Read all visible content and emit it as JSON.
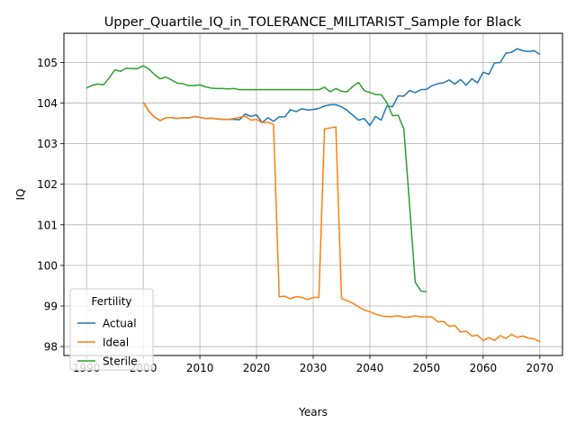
{
  "chart_data": {
    "type": "line",
    "title": "Upper_Quartile_IQ_in_TOLERANCE_MILITARIST_Sample for Black",
    "xlabel": "Years",
    "ylabel": "IQ",
    "xlim": [
      1986,
      2074
    ],
    "ylim": [
      97.78,
      105.72
    ],
    "x_ticks": [
      1990,
      2000,
      2010,
      2020,
      2030,
      2040,
      2050,
      2060,
      2070
    ],
    "y_ticks": [
      98,
      99,
      100,
      101,
      102,
      103,
      104,
      105
    ],
    "grid": true,
    "legend_title": "Fertility",
    "legend_position": "lower left",
    "series": [
      {
        "name": "Actual",
        "color": "#1f77b4",
        "x": [
          2000,
          2001,
          2002,
          2003,
          2004,
          2005,
          2006,
          2007,
          2008,
          2009,
          2010,
          2011,
          2012,
          2013,
          2014,
          2015,
          2016,
          2017,
          2018,
          2019,
          2020,
          2021,
          2022,
          2023,
          2024,
          2025,
          2026,
          2027,
          2028,
          2029,
          2030,
          2031,
          2032,
          2033,
          2034,
          2035,
          2036,
          2037,
          2038,
          2039,
          2040,
          2041,
          2042,
          2043,
          2044,
          2045,
          2046,
          2047,
          2048,
          2049,
          2050,
          2051,
          2052,
          2053,
          2054,
          2055,
          2056,
          2057,
          2058,
          2059,
          2060,
          2061,
          2062,
          2063,
          2064,
          2065,
          2066,
          2067,
          2068,
          2069,
          2070
        ],
        "values": [
          104.02,
          103.8,
          103.65,
          103.57,
          103.64,
          103.64,
          103.62,
          103.64,
          103.63,
          103.67,
          103.65,
          103.62,
          103.63,
          103.61,
          103.6,
          103.6,
          103.6,
          103.59,
          103.73,
          103.67,
          103.71,
          103.52,
          103.64,
          103.55,
          103.66,
          103.66,
          103.84,
          103.79,
          103.86,
          103.83,
          103.84,
          103.87,
          103.93,
          103.96,
          103.96,
          103.91,
          103.82,
          103.7,
          103.58,
          103.62,
          103.45,
          103.67,
          103.58,
          103.93,
          103.91,
          104.18,
          104.17,
          104.31,
          104.26,
          104.33,
          104.34,
          104.43,
          104.48,
          104.5,
          104.57,
          104.47,
          104.58,
          104.44,
          104.6,
          104.5,
          104.76,
          104.71,
          104.99,
          105.0,
          105.23,
          105.25,
          105.34,
          105.29,
          105.27,
          105.29,
          105.2
        ]
      },
      {
        "name": "Ideal",
        "color": "#ff7f0e",
        "x": [
          2000,
          2001,
          2002,
          2003,
          2004,
          2005,
          2006,
          2007,
          2008,
          2009,
          2010,
          2011,
          2012,
          2013,
          2014,
          2015,
          2016,
          2017,
          2018,
          2019,
          2020,
          2021,
          2022,
          2023,
          2024,
          2025,
          2026,
          2027,
          2028,
          2029,
          2030,
          2031,
          2032,
          2033,
          2034,
          2035,
          2036,
          2037,
          2038,
          2039,
          2040,
          2041,
          2042,
          2043,
          2044,
          2045,
          2046,
          2047,
          2048,
          2049,
          2050,
          2051,
          2052,
          2053,
          2054,
          2055,
          2056,
          2057,
          2058,
          2059,
          2060,
          2061,
          2062,
          2063,
          2064,
          2065,
          2066,
          2067,
          2068,
          2069,
          2070
        ],
        "values": [
          104.02,
          103.8,
          103.65,
          103.57,
          103.64,
          103.64,
          103.62,
          103.64,
          103.63,
          103.67,
          103.65,
          103.62,
          103.63,
          103.61,
          103.6,
          103.6,
          103.62,
          103.65,
          103.68,
          103.58,
          103.6,
          103.52,
          103.53,
          103.47,
          99.23,
          99.24,
          99.18,
          99.23,
          99.21,
          99.16,
          99.21,
          99.21,
          103.36,
          103.39,
          103.41,
          99.19,
          99.13,
          99.07,
          98.98,
          98.9,
          98.86,
          98.8,
          98.76,
          98.74,
          98.74,
          98.76,
          98.72,
          98.73,
          98.76,
          98.73,
          98.73,
          98.73,
          98.61,
          98.62,
          98.5,
          98.52,
          98.36,
          98.38,
          98.26,
          98.28,
          98.15,
          98.22,
          98.15,
          98.27,
          98.2,
          98.3,
          98.23,
          98.26,
          98.21,
          98.19,
          98.12
        ]
      },
      {
        "name": "Sterile",
        "color": "#2ca02c",
        "x": [
          1990,
          1991,
          1992,
          1993,
          1994,
          1995,
          1996,
          1997,
          1998,
          1999,
          2000,
          2001,
          2002,
          2003,
          2004,
          2005,
          2006,
          2007,
          2008,
          2009,
          2010,
          2011,
          2012,
          2013,
          2014,
          2015,
          2016,
          2017,
          2018,
          2019,
          2020,
          2021,
          2022,
          2023,
          2024,
          2025,
          2026,
          2027,
          2028,
          2029,
          2030,
          2031,
          2032,
          2033,
          2034,
          2035,
          2036,
          2037,
          2038,
          2039,
          2040,
          2041,
          2042,
          2043,
          2044,
          2045,
          2046,
          2047,
          2048,
          2049,
          2050
        ],
        "values": [
          104.37,
          104.44,
          104.47,
          104.45,
          104.62,
          104.82,
          104.78,
          104.86,
          104.85,
          104.85,
          104.92,
          104.84,
          104.7,
          104.6,
          104.64,
          104.57,
          104.49,
          104.48,
          104.43,
          104.43,
          104.45,
          104.4,
          104.37,
          104.36,
          104.36,
          104.35,
          104.36,
          104.33,
          104.33,
          104.33,
          104.33,
          104.33,
          104.33,
          104.33,
          104.33,
          104.33,
          104.33,
          104.33,
          104.33,
          104.33,
          104.33,
          104.33,
          104.39,
          104.28,
          104.36,
          104.29,
          104.28,
          104.41,
          104.51,
          104.31,
          104.26,
          104.21,
          104.21,
          104.01,
          103.69,
          103.7,
          103.36,
          101.51,
          99.59,
          99.37,
          99.35
        ]
      }
    ]
  }
}
